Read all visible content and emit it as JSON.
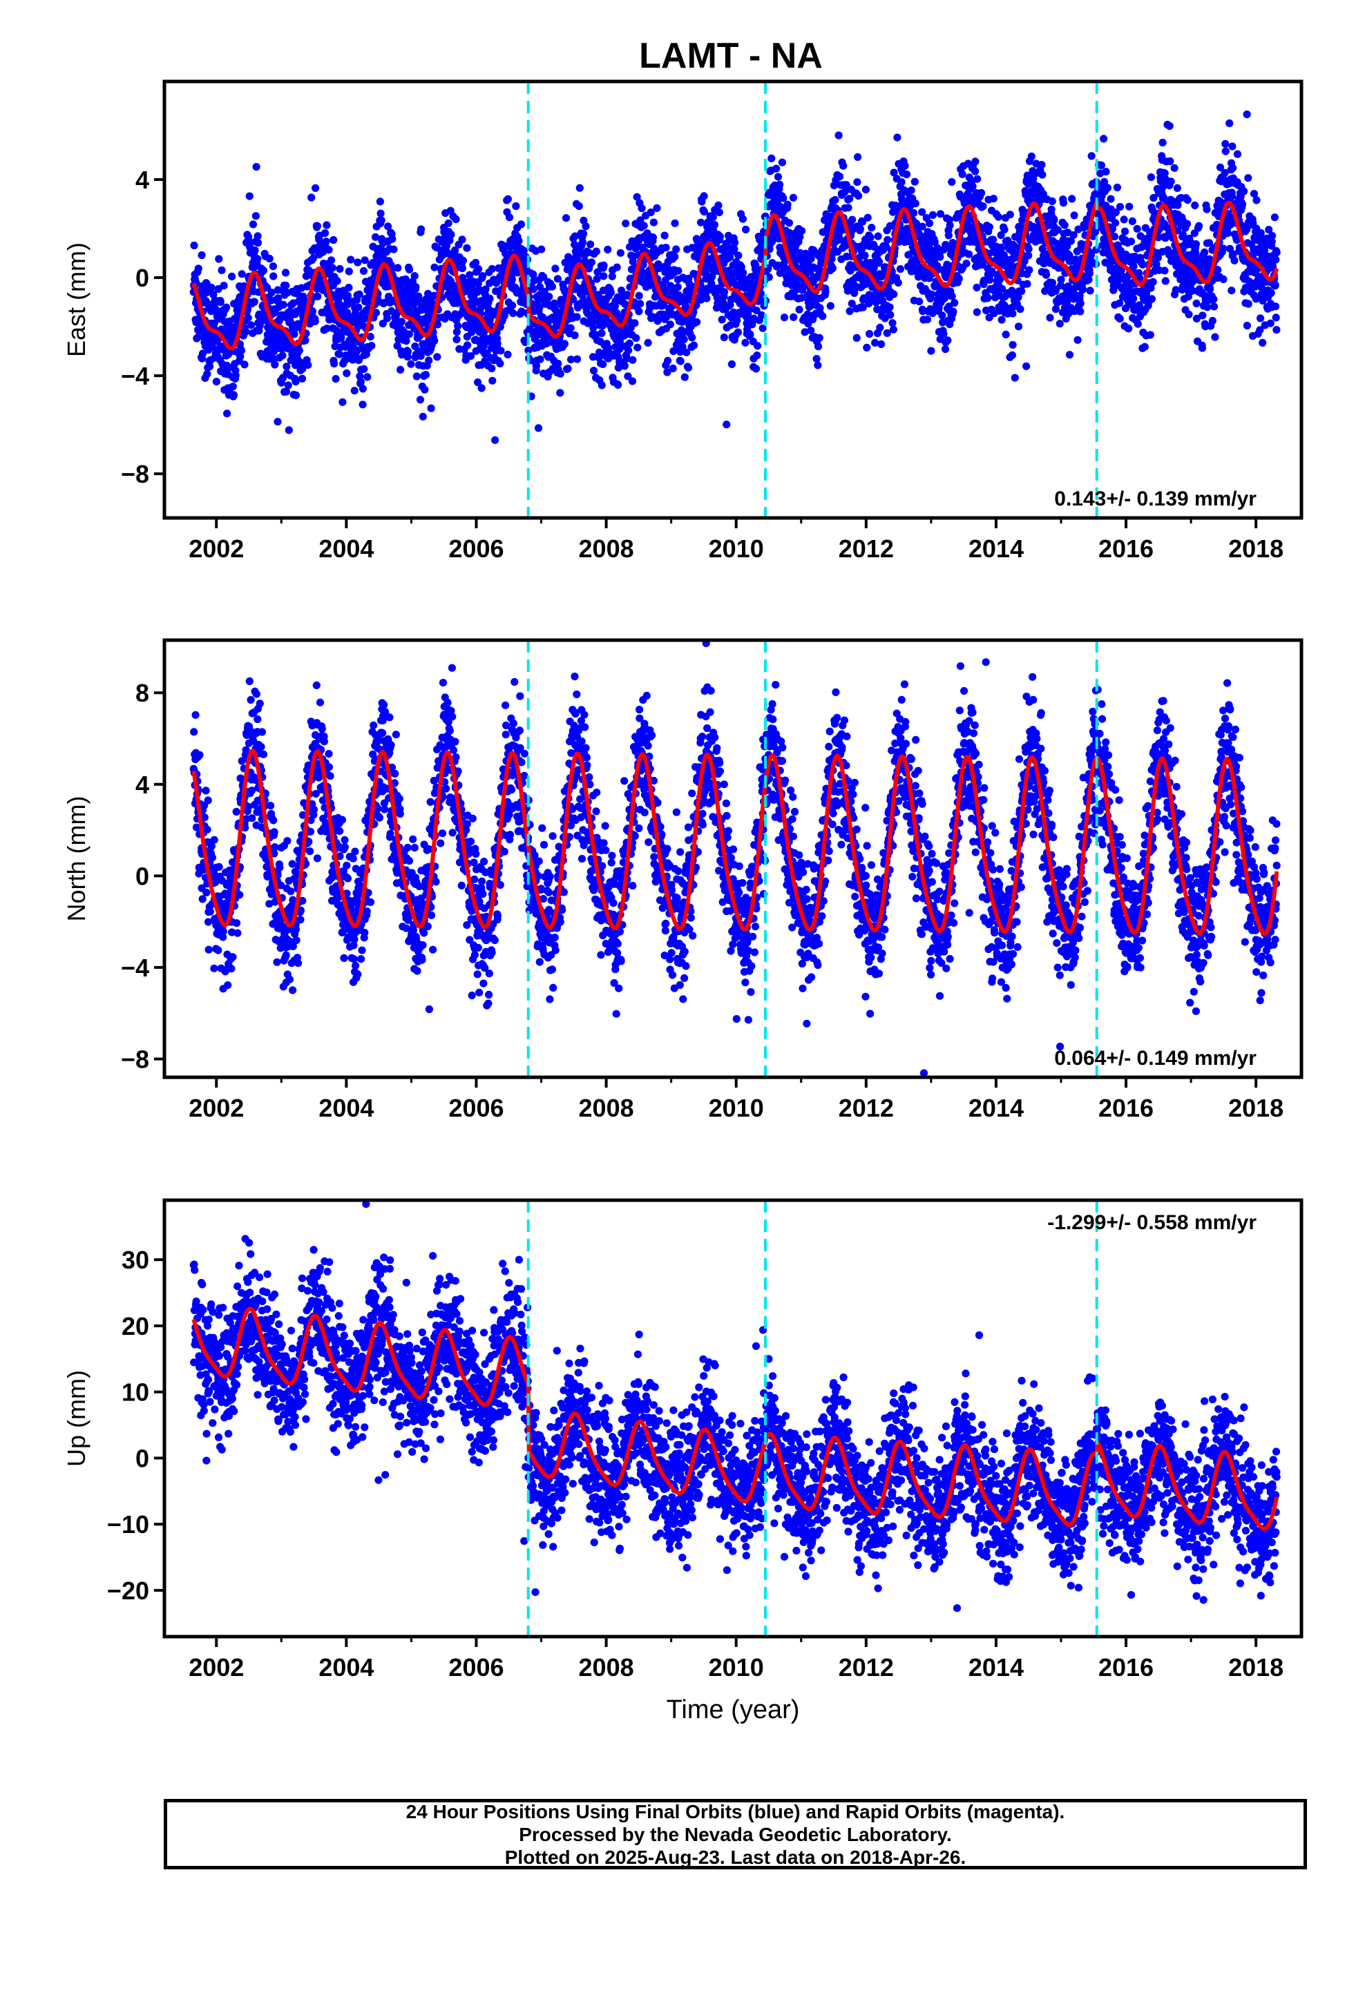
{
  "title": "LAMT - NA",
  "colors": {
    "final_orbits": "#0000ff",
    "model": "#ff0000",
    "offset_line": "#00e5ee",
    "axis": "#000000"
  },
  "chart_data": [
    {
      "type": "scatter",
      "component": "East",
      "ylabel": "East (mm)",
      "xlabel": "",
      "xlim": [
        2001.2,
        2018.7
      ],
      "ylim": [
        -9.8,
        8.0
      ],
      "xticks": [
        2002,
        2004,
        2006,
        2008,
        2010,
        2012,
        2014,
        2016,
        2018
      ],
      "yticks": [
        -8,
        -4,
        0,
        4
      ],
      "ytick_labels": [
        "−8",
        "−4",
        "0",
        "4"
      ],
      "rate_label": "0.143+/- 0.139 mm/yr",
      "rate_position": "bottom-right",
      "offsets": [
        2006.8,
        2010.45,
        2015.55
      ],
      "series": [
        {
          "role": "daily-positions",
          "color": "#0000ff",
          "x_range": [
            2001.65,
            2018.32
          ],
          "scatter": 1.15,
          "model": {
            "segments": [
              {
                "t0": 2001.65,
                "t1": 2006.8,
                "level_start": -1.7,
                "level_end": -0.8,
                "amp": 1.3,
                "amp2": 0.5,
                "phase": 0.62
              },
              {
                "t0": 2006.8,
                "t1": 2010.45,
                "level_start": -1.4,
                "level_end": 0.2,
                "amp": 1.2,
                "amp2": 0.45,
                "phase": 0.62
              },
              {
                "t0": 2010.45,
                "t1": 2015.55,
                "level_start": 0.7,
                "level_end": 1.3,
                "amp": 1.4,
                "amp2": 0.5,
                "phase": 0.62
              },
              {
                "t0": 2015.55,
                "t1": 2018.32,
                "level_start": 1.0,
                "level_end": 1.3,
                "amp": 1.4,
                "amp2": 0.5,
                "phase": 0.62
              }
            ]
          }
        },
        {
          "role": "model-fit",
          "color": "#ff0000"
        }
      ]
    },
    {
      "type": "scatter",
      "component": "North",
      "ylabel": "North (mm)",
      "xlabel": "",
      "xlim": [
        2001.2,
        2018.7
      ],
      "ylim": [
        -8.8,
        10.3
      ],
      "xticks": [
        2002,
        2004,
        2006,
        2008,
        2010,
        2012,
        2014,
        2016,
        2018
      ],
      "yticks": [
        -8,
        -4,
        0,
        4,
        8
      ],
      "ytick_labels": [
        "−8",
        "−4",
        "0",
        "4",
        "8"
      ],
      "rate_label": "0.064+/- 0.149 mm/yr",
      "rate_position": "bottom-right",
      "offsets": [
        2006.8,
        2010.45,
        2015.55
      ],
      "series": [
        {
          "role": "daily-positions",
          "color": "#0000ff",
          "x_range": [
            2001.65,
            2018.32
          ],
          "scatter": 1.35,
          "model": {
            "segments": [
              {
                "t0": 2001.65,
                "t1": 2018.32,
                "level_start": 1.3,
                "level_end": 0.9,
                "amp": 3.7,
                "amp2": 0.6,
                "phase": 0.58
              }
            ]
          }
        },
        {
          "role": "model-fit",
          "color": "#ff0000"
        }
      ]
    },
    {
      "type": "scatter",
      "component": "Up",
      "ylabel": "Up (mm)",
      "xlabel": "Time (year)",
      "xlim": [
        2001.2,
        2018.7
      ],
      "ylim": [
        -27,
        39
      ],
      "xticks": [
        2002,
        2004,
        2006,
        2008,
        2010,
        2012,
        2014,
        2016,
        2018
      ],
      "yticks": [
        -20,
        -10,
        0,
        10,
        20,
        30
      ],
      "ytick_labels": [
        "−20",
        "−10",
        "0",
        "10",
        "20",
        "30"
      ],
      "rate_label": "-1.299+/- 0.558 mm/yr",
      "rate_position": "top-right",
      "offsets": [
        2006.8,
        2010.45,
        2015.55
      ],
      "series": [
        {
          "role": "daily-positions",
          "color": "#0000ff",
          "x_range": [
            2001.65,
            2018.32
          ],
          "scatter": 4.6,
          "model": {
            "segments": [
              {
                "t0": 2001.65,
                "t1": 2006.8,
                "level_start": 17.5,
                "level_end": 12.0,
                "amp": 5.0,
                "amp2": 1.2,
                "phase": 0.55
              },
              {
                "t0": 2006.8,
                "t1": 2010.45,
                "level_start": 2.0,
                "level_end": -2.5,
                "amp": 4.8,
                "amp2": 1.0,
                "phase": 0.55
              },
              {
                "t0": 2010.45,
                "t1": 2015.55,
                "level_start": -2.5,
                "level_end": -5.5,
                "amp": 5.2,
                "amp2": 1.2,
                "phase": 0.55
              },
              {
                "t0": 2015.55,
                "t1": 2018.32,
                "level_start": -3.5,
                "level_end": -6.0,
                "amp": 5.2,
                "amp2": 1.2,
                "phase": 0.55
              }
            ]
          }
        },
        {
          "role": "model-fit",
          "color": "#ff0000"
        }
      ]
    }
  ],
  "caption": {
    "line1": "24 Hour Positions Using Final Orbits (blue) and Rapid Orbits (magenta).",
    "line2": "Processed by the Nevada Geodetic Laboratory.",
    "line3": "Plotted on 2025-Aug-23. Last data on 2018-Apr-26."
  }
}
